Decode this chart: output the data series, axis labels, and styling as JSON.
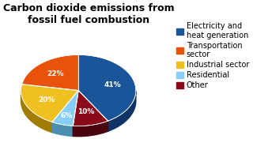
{
  "title": "Carbon dioxide emissions from fossil fuel combustion",
  "order_values": [
    41,
    10,
    6,
    20,
    22
  ],
  "order_colors": [
    "#1a5499",
    "#8b0a1a",
    "#87cefa",
    "#f0c020",
    "#e8520a"
  ],
  "order_pct": [
    "41%",
    "10%",
    "6%",
    "20%",
    "22%"
  ],
  "order_dark_colors": [
    "#0e3366",
    "#4a0510",
    "#4a8fb0",
    "#a07c00",
    "#8c2c00"
  ],
  "legend_labels": [
    "Electricity and\nheat generation",
    "Transportation\nsector",
    "Industrial sector",
    "Residential",
    "Other"
  ],
  "legend_colors": [
    "#1a5499",
    "#e8520a",
    "#f0c020",
    "#87cefa",
    "#8b0a1a"
  ],
  "title_fontsize": 9,
  "legend_fontsize": 7,
  "bg_color": "#ffffff"
}
